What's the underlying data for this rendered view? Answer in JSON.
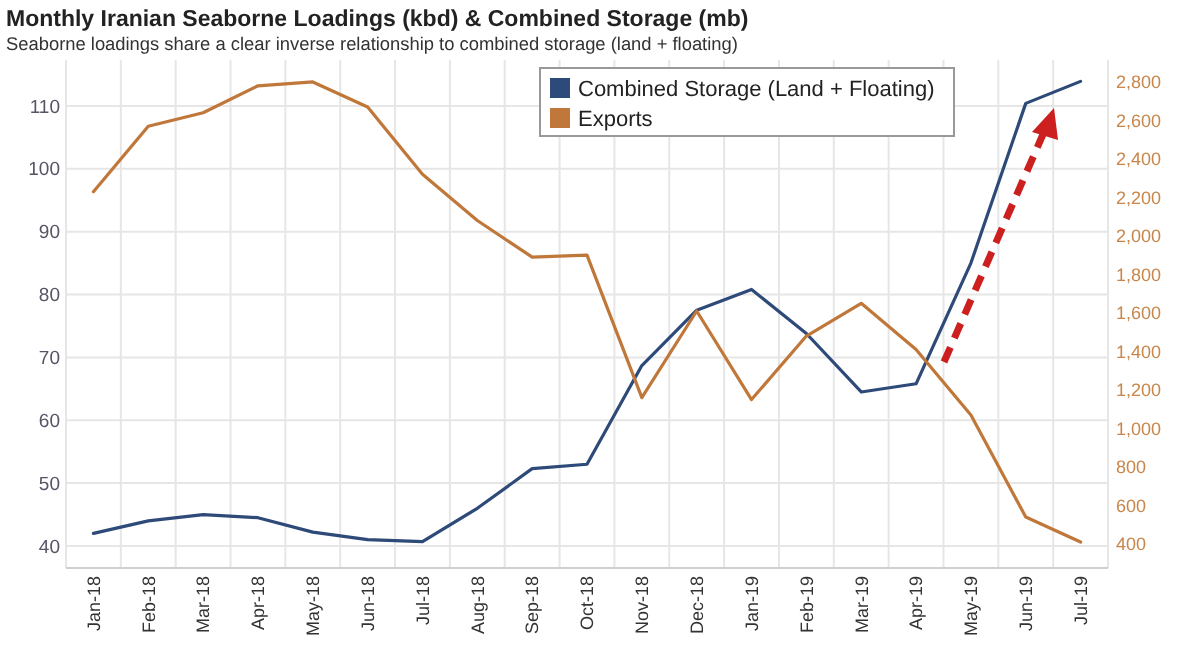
{
  "chart_data": {
    "type": "line",
    "title": "Monthly Iranian Seaborne Loadings (kbd) & Combined Storage (mb)",
    "subtitle": "Seaborne loadings share a clear inverse relationship to combined storage (land + floating)",
    "categories": [
      "Jan-18",
      "Feb-18",
      "Mar-18",
      "Apr-18",
      "May-18",
      "Jun-18",
      "Jul-18",
      "Aug-18",
      "Sep-18",
      "Oct-18",
      "Nov-18",
      "Dec-18",
      "Jan-19",
      "Feb-19",
      "Mar-19",
      "Apr-19",
      "May-19",
      "Jun-19",
      "Jul-19"
    ],
    "series": [
      {
        "name": "Combined Storage (Land + Floating)",
        "color": "#2e4a78",
        "values": [
          42,
          44,
          45,
          44.5,
          42.2,
          41,
          40.7,
          46,
          52.3,
          53,
          68.7,
          77.5,
          80.8,
          73.8,
          64.5,
          65.8,
          85,
          110.4,
          113.9
        ]
      },
      {
        "name": "Exports",
        "color": "#c0773a",
        "axis": "y2",
        "values": [
          2230,
          2570,
          2640,
          2780,
          2800,
          2670,
          2320,
          2080,
          1890,
          1900,
          1160,
          1610,
          1150,
          1480,
          1650,
          1410,
          1070,
          540,
          410
        ]
      }
    ],
    "ylim": [
      36.5,
      117.3
    ],
    "yticks": [
      40,
      50,
      60,
      70,
      80,
      90,
      100,
      110
    ],
    "y2lim": [
      275,
      2914
    ],
    "y2ticks": [
      {
        "value": 400,
        "label": "400"
      },
      {
        "value": 600,
        "label": "600"
      },
      {
        "value": 800,
        "label": "800"
      },
      {
        "value": 1000,
        "label": "1,000"
      },
      {
        "value": 1200,
        "label": "1,200"
      },
      {
        "value": 1400,
        "label": "1,400"
      },
      {
        "value": 1600,
        "label": "1,600"
      },
      {
        "value": 1800,
        "label": "1,800"
      },
      {
        "value": 2000,
        "label": "2,000"
      },
      {
        "value": 2200,
        "label": "2,200"
      },
      {
        "value": 2400,
        "label": "2,400"
      },
      {
        "value": 2600,
        "label": "2,600"
      },
      {
        "value": 2800,
        "label": "2,800"
      }
    ],
    "grid": true,
    "legend": "top right",
    "marker": "none",
    "line_style": "solid"
  }
}
